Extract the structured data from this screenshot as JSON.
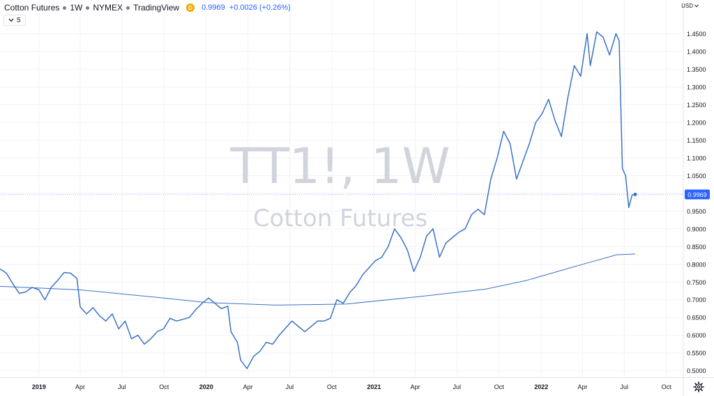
{
  "header": {
    "symbol_name": "Cotton Futures",
    "interval": "1W",
    "exchange": "NYMEX",
    "source": "TradingView",
    "badge": "D",
    "price": "0.9969",
    "change": "+0.0026 (+0.26%)"
  },
  "indicator_toggle": {
    "count": "5"
  },
  "currency": "USD",
  "watermark": {
    "symbol": "TT1!, 1W",
    "name": "Cotton Futures"
  },
  "colors": {
    "line": "#3a72c4",
    "price_label": "#2962ff",
    "grid": "#f0f3fa",
    "axis_text": "#131722"
  },
  "icons": {
    "indicator": "chevron-down-icon",
    "currency": "chevron-down-icon",
    "settings": "gear-icon"
  },
  "chart_data": {
    "type": "line",
    "ylim": [
      0.47,
      1.49
    ],
    "xlim": [
      "2018-10-08",
      "2022-11-07"
    ],
    "x_ticks": [
      {
        "label": "2019",
        "date": "2019-01-01",
        "bold": true
      },
      {
        "label": "Apr",
        "date": "2019-04-01"
      },
      {
        "label": "Jul",
        "date": "2019-07-01"
      },
      {
        "label": "Oct",
        "date": "2019-10-01"
      },
      {
        "label": "2020",
        "date": "2020-01-01",
        "bold": true
      },
      {
        "label": "Apr",
        "date": "2020-04-01"
      },
      {
        "label": "Jul",
        "date": "2020-07-01"
      },
      {
        "label": "Oct",
        "date": "2020-10-01"
      },
      {
        "label": "2021",
        "date": "2021-01-01",
        "bold": true
      },
      {
        "label": "Apr",
        "date": "2021-04-01"
      },
      {
        "label": "Jul",
        "date": "2021-07-01"
      },
      {
        "label": "Oct",
        "date": "2021-10-01"
      },
      {
        "label": "2022",
        "date": "2022-01-01",
        "bold": true
      },
      {
        "label": "Apr",
        "date": "2022-04-01"
      },
      {
        "label": "Jul",
        "date": "2022-07-01"
      },
      {
        "label": "Oct",
        "date": "2022-10-01"
      }
    ],
    "y_ticks": [
      0.5,
      0.55,
      0.6,
      0.65,
      0.7,
      0.75,
      0.8,
      0.85,
      0.9,
      0.95,
      1.0,
      1.05,
      1.1,
      1.15,
      1.2,
      1.25,
      1.3,
      1.35,
      1.4,
      1.45
    ],
    "last_price": 0.9969,
    "series": [
      {
        "style": "price",
        "points": [
          [
            "2018-10-08",
            0.787
          ],
          [
            "2018-10-22",
            0.775
          ],
          [
            "2018-11-05",
            0.745
          ],
          [
            "2018-11-19",
            0.718
          ],
          [
            "2018-12-03",
            0.722
          ],
          [
            "2018-12-17",
            0.735
          ],
          [
            "2019-01-01",
            0.728
          ],
          [
            "2019-01-14",
            0.7
          ],
          [
            "2019-01-28",
            0.735
          ],
          [
            "2019-02-11",
            0.755
          ],
          [
            "2019-02-25",
            0.777
          ],
          [
            "2019-03-11",
            0.775
          ],
          [
            "2019-03-25",
            0.76
          ],
          [
            "2019-04-01",
            0.68
          ],
          [
            "2019-04-15",
            0.66
          ],
          [
            "2019-04-29",
            0.678
          ],
          [
            "2019-05-13",
            0.655
          ],
          [
            "2019-05-27",
            0.64
          ],
          [
            "2019-06-10",
            0.66
          ],
          [
            "2019-06-24",
            0.618
          ],
          [
            "2019-07-08",
            0.64
          ],
          [
            "2019-07-22",
            0.59
          ],
          [
            "2019-08-05",
            0.6
          ],
          [
            "2019-08-19",
            0.575
          ],
          [
            "2019-09-02",
            0.59
          ],
          [
            "2019-09-16",
            0.61
          ],
          [
            "2019-09-30",
            0.618
          ],
          [
            "2019-10-14",
            0.648
          ],
          [
            "2019-10-28",
            0.64
          ],
          [
            "2019-11-11",
            0.645
          ],
          [
            "2019-11-25",
            0.65
          ],
          [
            "2019-12-09",
            0.672
          ],
          [
            "2019-12-23",
            0.69
          ],
          [
            "2020-01-06",
            0.705
          ],
          [
            "2020-01-20",
            0.69
          ],
          [
            "2020-02-03",
            0.675
          ],
          [
            "2020-02-17",
            0.682
          ],
          [
            "2020-02-24",
            0.61
          ],
          [
            "2020-03-09",
            0.58
          ],
          [
            "2020-03-16",
            0.53
          ],
          [
            "2020-03-30",
            0.506
          ],
          [
            "2020-04-13",
            0.54
          ],
          [
            "2020-04-27",
            0.555
          ],
          [
            "2020-05-11",
            0.58
          ],
          [
            "2020-05-25",
            0.575
          ],
          [
            "2020-06-08",
            0.6
          ],
          [
            "2020-06-22",
            0.62
          ],
          [
            "2020-07-06",
            0.64
          ],
          [
            "2020-07-20",
            0.625
          ],
          [
            "2020-08-03",
            0.61
          ],
          [
            "2020-08-17",
            0.625
          ],
          [
            "2020-08-31",
            0.64
          ],
          [
            "2020-09-14",
            0.64
          ],
          [
            "2020-09-28",
            0.648
          ],
          [
            "2020-10-12",
            0.7
          ],
          [
            "2020-10-26",
            0.69
          ],
          [
            "2020-11-09",
            0.72
          ],
          [
            "2020-11-23",
            0.74
          ],
          [
            "2020-12-07",
            0.77
          ],
          [
            "2020-12-21",
            0.79
          ],
          [
            "2021-01-04",
            0.81
          ],
          [
            "2021-01-18",
            0.82
          ],
          [
            "2021-02-01",
            0.85
          ],
          [
            "2021-02-15",
            0.9
          ],
          [
            "2021-03-01",
            0.875
          ],
          [
            "2021-03-15",
            0.84
          ],
          [
            "2021-03-29",
            0.78
          ],
          [
            "2021-04-12",
            0.82
          ],
          [
            "2021-04-26",
            0.88
          ],
          [
            "2021-05-10",
            0.9
          ],
          [
            "2021-05-24",
            0.82
          ],
          [
            "2021-06-07",
            0.86
          ],
          [
            "2021-06-21",
            0.875
          ],
          [
            "2021-07-05",
            0.89
          ],
          [
            "2021-07-19",
            0.9
          ],
          [
            "2021-08-02",
            0.94
          ],
          [
            "2021-08-16",
            0.955
          ],
          [
            "2021-08-30",
            0.94
          ],
          [
            "2021-09-13",
            1.04
          ],
          [
            "2021-09-27",
            1.1
          ],
          [
            "2021-10-11",
            1.175
          ],
          [
            "2021-10-25",
            1.14
          ],
          [
            "2021-11-08",
            1.04
          ],
          [
            "2021-11-22",
            1.09
          ],
          [
            "2021-12-06",
            1.14
          ],
          [
            "2021-12-20",
            1.2
          ],
          [
            "2022-01-03",
            1.225
          ],
          [
            "2022-01-17",
            1.265
          ],
          [
            "2022-01-31",
            1.205
          ],
          [
            "2022-02-14",
            1.16
          ],
          [
            "2022-02-28",
            1.27
          ],
          [
            "2022-03-14",
            1.36
          ],
          [
            "2022-03-28",
            1.33
          ],
          [
            "2022-04-11",
            1.45
          ],
          [
            "2022-04-18",
            1.36
          ],
          [
            "2022-05-02",
            1.455
          ],
          [
            "2022-05-16",
            1.44
          ],
          [
            "2022-05-30",
            1.39
          ],
          [
            "2022-06-13",
            1.45
          ],
          [
            "2022-06-20",
            1.43
          ],
          [
            "2022-06-27",
            1.07
          ],
          [
            "2022-07-04",
            1.05
          ],
          [
            "2022-07-11",
            0.96
          ],
          [
            "2022-07-18",
            0.995
          ],
          [
            "2022-07-25",
            0.9969
          ]
        ]
      },
      {
        "style": "average",
        "points": [
          [
            "2018-10-08",
            0.738
          ],
          [
            "2019-04-01",
            0.728
          ],
          [
            "2019-10-01",
            0.705
          ],
          [
            "2020-01-01",
            0.692
          ],
          [
            "2020-06-01",
            0.685
          ],
          [
            "2020-11-01",
            0.688
          ],
          [
            "2021-04-01",
            0.708
          ],
          [
            "2021-09-01",
            0.73
          ],
          [
            "2021-12-01",
            0.755
          ],
          [
            "2022-04-01",
            0.8
          ],
          [
            "2022-06-15",
            0.827
          ],
          [
            "2022-07-25",
            0.829
          ]
        ]
      }
    ]
  }
}
